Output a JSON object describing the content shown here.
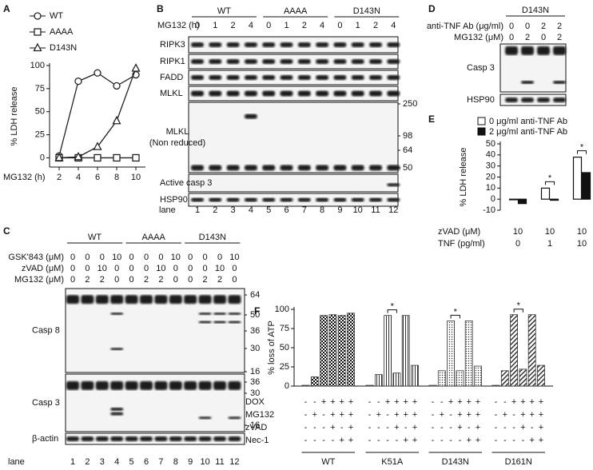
{
  "panel_letters": [
    "A",
    "B",
    "C",
    "D",
    "E",
    "F"
  ],
  "chart_data": [
    {
      "type": "line",
      "x_label": "MG132 (h)",
      "y_label": "% LDH release",
      "x": [
        2,
        4,
        6,
        8,
        10
      ],
      "xlim": [
        1,
        11
      ],
      "xticks": [
        2,
        4,
        6,
        8,
        10
      ],
      "ylim": [
        -10,
        100
      ],
      "yticks": [
        0,
        25,
        50,
        75,
        100
      ],
      "series": [
        {
          "name": "WT",
          "marker": "circle",
          "color": "#222222",
          "values": [
            2,
            83,
            92,
            78,
            90
          ]
        },
        {
          "name": "AAAA",
          "marker": "square",
          "color": "#222222",
          "values": [
            0,
            0,
            0,
            0,
            0
          ]
        },
        {
          "name": "D143N",
          "marker": "triangle",
          "color": "#222222",
          "values": [
            0,
            1,
            12,
            40,
            97
          ]
        }
      ]
    },
    {
      "type": "bar",
      "y_label": "% LDH release",
      "ylim": [
        -10,
        50
      ],
      "yticks": [
        -10,
        0,
        10,
        20,
        30,
        40,
        50
      ],
      "category_rows": [
        {
          "label": "zVAD (μM)",
          "values": [
            10,
            10,
            10
          ]
        },
        {
          "label": "TNF (pg/ml)",
          "values": [
            0,
            1,
            10
          ]
        }
      ],
      "series": [
        {
          "name": "0 μg/ml anti-TNF Ab",
          "color": "#ffffff",
          "values": [
            0,
            10,
            38
          ]
        },
        {
          "name": "2 μg/ml anti-TNF Ab",
          "color": "#111111",
          "values": [
            -4,
            -1,
            24
          ]
        }
      ],
      "significance": [
        null,
        "*",
        "*"
      ]
    },
    {
      "type": "grouped-bar",
      "y_label": "% loss of ATP",
      "ylim": [
        0,
        100
      ],
      "yticks": [
        0,
        25,
        50,
        75,
        100
      ],
      "categories": [
        "WT",
        "K51A",
        "D143N",
        "D161N"
      ],
      "values": [
        [
          1,
          12,
          92,
          93,
          92,
          95
        ],
        [
          1,
          15,
          92,
          17,
          92,
          27
        ],
        [
          1,
          20,
          85,
          20,
          85,
          26
        ],
        [
          1,
          20,
          93,
          22,
          93,
          27
        ]
      ],
      "conditions": [
        {
          "label": "DOX",
          "signs": [
            "-",
            "-",
            "+",
            "+",
            "+",
            "+"
          ]
        },
        {
          "label": "MG132",
          "signs": [
            "-",
            "+",
            "-",
            "+",
            "+",
            "+"
          ]
        },
        {
          "label": "zVAD",
          "signs": [
            "-",
            "-",
            "-",
            "+",
            "-",
            "+"
          ]
        },
        {
          "label": "Nec-1",
          "signs": [
            "-",
            "-",
            "-",
            "-",
            "+",
            "+"
          ]
        }
      ],
      "significance": [
        null,
        "*",
        "*",
        "*"
      ]
    }
  ],
  "blot_panels": [
    {
      "groups": [
        "WT",
        "AAAA",
        "D143N"
      ],
      "treatment_rows": [
        {
          "label": "MG132 (h)",
          "values": [
            0,
            1,
            2,
            4
          ]
        }
      ],
      "blots": [
        {
          "label": "RIPK3"
        },
        {
          "label": "RIPK1"
        },
        {
          "label": "FADD"
        },
        {
          "label": "MLKL"
        },
        {
          "label": [
            "MLKL",
            "(Non reduced)"
          ],
          "markers": [
            250,
            98,
            64,
            50
          ]
        },
        {
          "label": "Active casp 3"
        },
        {
          "label": "HSP90"
        }
      ],
      "lane_label": "lane",
      "lanes": [
        1,
        2,
        3,
        4,
        5,
        6,
        7,
        8,
        9,
        10,
        11,
        12
      ]
    },
    {
      "groups": [
        "WT",
        "AAAA",
        "D143N"
      ],
      "treatment_rows": [
        {
          "label": "GSK'843 (μM)",
          "values": [
            0,
            0,
            0,
            10
          ]
        },
        {
          "label": "zVAD (μM)",
          "values": [
            0,
            0,
            10,
            0
          ]
        },
        {
          "label": "MG132 (μM)",
          "values": [
            0,
            2,
            2,
            0
          ]
        }
      ],
      "blots": [
        {
          "label": "Casp 8",
          "markers": [
            64,
            50,
            36,
            30,
            16
          ]
        },
        {
          "label": "Casp 3",
          "markers": [
            36,
            30,
            16
          ]
        },
        {
          "label": "β-actin"
        }
      ],
      "lane_label": "lane",
      "lanes": [
        1,
        2,
        3,
        4,
        5,
        6,
        7,
        8,
        9,
        10,
        11,
        12
      ]
    },
    {
      "groups": [
        "D143N"
      ],
      "treatment_rows": [
        {
          "label": "anti-TNF Ab (μg/ml)",
          "values": [
            0,
            0,
            2,
            2
          ]
        },
        {
          "label": "MG132 (μM)",
          "values": [
            0,
            2,
            0,
            2
          ]
        }
      ],
      "blots": [
        {
          "label": "Casp 3"
        },
        {
          "label": "HSP90"
        }
      ]
    }
  ]
}
